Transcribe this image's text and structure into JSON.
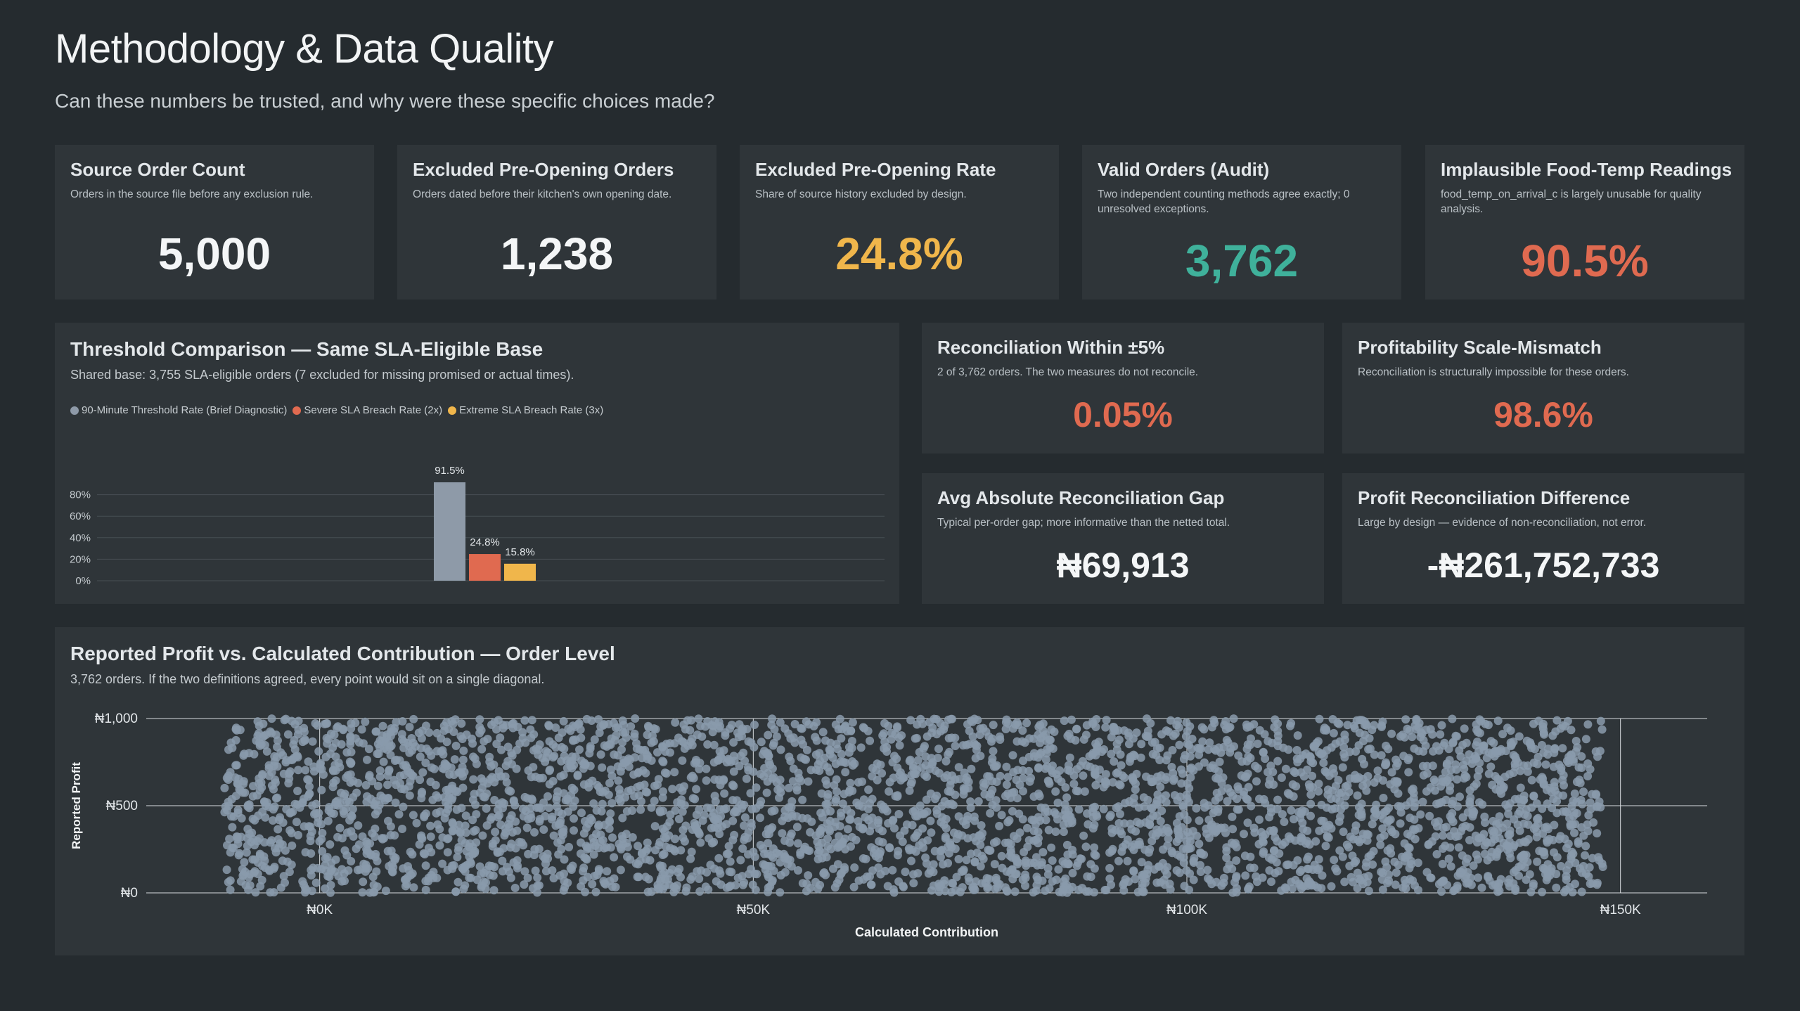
{
  "header": {
    "title": "Methodology & Data Quality",
    "subtitle": "Can these numbers be trusted, and why were these specific choices made?"
  },
  "kpis": [
    {
      "title": "Source Order Count",
      "desc": "Orders in the source file before any exclusion rule.",
      "value": "5,000",
      "color": "#f4f6f7"
    },
    {
      "title": "Excluded Pre-Opening Orders",
      "desc": "Orders dated before their kitchen's own opening date.",
      "value": "1,238",
      "color": "#f4f6f7"
    },
    {
      "title": "Excluded Pre-Opening Rate",
      "desc": "Share of source history excluded by design.",
      "value": "24.8%",
      "color": "#f0b64b"
    },
    {
      "title": "Valid Orders (Audit)",
      "desc": "Two independent counting methods agree exactly; 0 unresolved exceptions.",
      "value": "3,762",
      "color": "#3fb19b"
    },
    {
      "title": "Implausible Food-Temp Readings",
      "desc": "food_temp_on_arrival_c is largely unusable for quality analysis.",
      "value": "90.5%",
      "color": "#e06a50"
    }
  ],
  "recon": [
    {
      "title": "Reconciliation Within ±5%",
      "desc": "2 of 3,762 orders. The two measures do not reconcile.",
      "value": "0.05%",
      "color": "#e06a50"
    },
    {
      "title": "Profitability Scale-Mismatch",
      "desc": "Reconciliation is structurally impossible for these orders.",
      "value": "98.6%",
      "color": "#e06a50"
    },
    {
      "title": "Avg Absolute Reconciliation Gap",
      "desc": "Typical per-order gap; more informative than the netted total.",
      "value": "₦69,913",
      "color": "#f4f6f7"
    },
    {
      "title": "Profit Reconciliation Difference",
      "desc": "Large by design — evidence of non-reconciliation, not error.",
      "value": "-₦261,752,733",
      "color": "#f4f6f7"
    }
  ],
  "threshold_chart": {
    "title": "Threshold Comparison — Same SLA-Eligible Base",
    "subtitle": "Shared base: 3,755 SLA-eligible orders (7 excluded for missing promised or actual times)."
  },
  "scatter_chart": {
    "title": "Reported Profit vs. Calculated Contribution — Order Level",
    "subtitle": "3,762 orders. If the two definitions agreed, every point would sit on a single diagonal."
  },
  "chart_data": [
    {
      "type": "bar",
      "title": "Threshold Comparison — Same SLA-Eligible Base",
      "categories": [
        ""
      ],
      "series": [
        {
          "name": "90-Minute Threshold Rate (Brief Diagnostic)",
          "values": [
            91.5
          ],
          "label": "91.5%",
          "color": "#8e9aa8"
        },
        {
          "name": "Severe SLA Breach Rate (2x)",
          "values": [
            24.8
          ],
          "label": "24.8%",
          "color": "#e06a50"
        },
        {
          "name": "Extreme SLA Breach Rate (3x)",
          "values": [
            15.8
          ],
          "label": "15.8%",
          "color": "#f0b64b"
        }
      ],
      "yticks": [
        "0%",
        "20%",
        "40%",
        "60%",
        "80%"
      ],
      "ylim": [
        0,
        100
      ],
      "legend": "top-left",
      "grid": true
    },
    {
      "type": "scatter",
      "title": "Reported Profit vs. Calculated Contribution — Order Level",
      "xlabel": "Calculated Contribution",
      "ylabel": "Reported Profit",
      "xticks": [
        "₦0K",
        "₦50K",
        "₦100K",
        "₦150K"
      ],
      "yticks": [
        "₦0",
        "₦500",
        "₦1,000"
      ],
      "xlim": [
        -20000,
        160000
      ],
      "ylim": [
        0,
        1000
      ],
      "point_count": 3762,
      "x_range": [
        -11000,
        148000
      ],
      "y_range": [
        0,
        1000
      ],
      "point_color": "#8a9aab",
      "grid": true
    }
  ]
}
